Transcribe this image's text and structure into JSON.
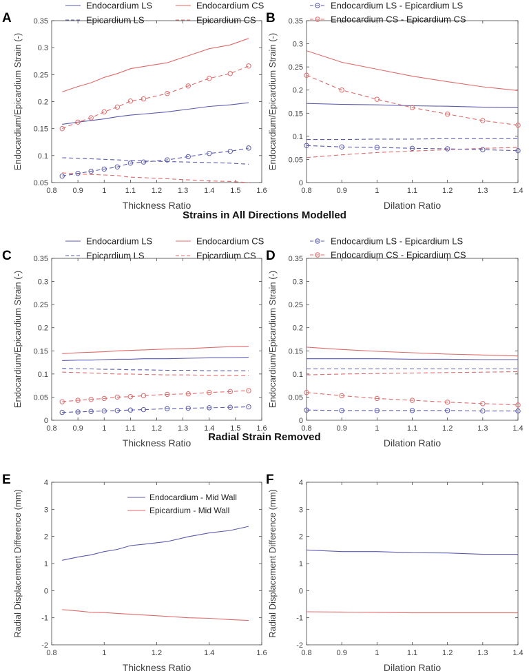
{
  "section_titles": {
    "middle": "Strains in All Directions Modelled",
    "bottom": "Radial Strain Removed"
  },
  "colors": {
    "blue": "#5a5aae",
    "red": "#e06a6a",
    "axis": "#444444",
    "text": "#404040"
  },
  "chart_data": [
    {
      "panel": "A",
      "type": "line",
      "title": "",
      "xlabel": "Thickness Ratio",
      "ylabel": "Endocardium/Epicardium Strain (-)",
      "xlim": [
        0.8,
        1.6
      ],
      "ylim": [
        0.05,
        0.35
      ],
      "xticks": [
        0.8,
        0.9,
        1,
        1.1,
        1.2,
        1.3,
        1.4,
        1.5,
        1.6
      ],
      "xtick_labels": [
        "0.8",
        "0.9",
        "1",
        "1.1",
        "1.2",
        "1.3",
        "1.4",
        "1.5",
        "1.6"
      ],
      "yticks": [
        0.05,
        0.1,
        0.15,
        0.2,
        0.25,
        0.3,
        0.35
      ],
      "ytick_labels": [
        "0.05",
        "0.1",
        "0.15",
        "0.2",
        "0.25",
        "0.3",
        "0.35"
      ],
      "x": [
        0.84,
        0.9,
        0.95,
        1.0,
        1.05,
        1.1,
        1.15,
        1.24,
        1.32,
        1.4,
        1.48,
        1.55
      ],
      "series": [
        {
          "name": "Endocardium LS",
          "color": "blue",
          "dash": false,
          "marker": false,
          "values": [
            0.158,
            0.162,
            0.165,
            0.168,
            0.172,
            0.175,
            0.177,
            0.181,
            0.186,
            0.191,
            0.194,
            0.198
          ]
        },
        {
          "name": "Endocardium CS",
          "color": "red",
          "dash": false,
          "marker": false,
          "values": [
            0.218,
            0.228,
            0.235,
            0.245,
            0.252,
            0.261,
            0.265,
            0.272,
            0.285,
            0.298,
            0.305,
            0.317
          ]
        },
        {
          "name": "Epicardium LS",
          "color": "blue",
          "dash": true,
          "marker": false,
          "values": [
            0.096,
            0.095,
            0.094,
            0.093,
            0.092,
            0.091,
            0.09,
            0.089,
            0.088,
            0.087,
            0.086,
            0.084
          ]
        },
        {
          "name": "Epicardium CS",
          "color": "red",
          "dash": true,
          "marker": false,
          "values": [
            0.068,
            0.066,
            0.065,
            0.064,
            0.063,
            0.06,
            0.059,
            0.057,
            0.055,
            0.053,
            0.052,
            0.05
          ]
        },
        {
          "name": "Endocardium CS - Epicardium CS",
          "color": "red",
          "dash": true,
          "marker": true,
          "legend": false,
          "values": [
            0.15,
            0.162,
            0.17,
            0.181,
            0.19,
            0.201,
            0.205,
            0.215,
            0.229,
            0.243,
            0.252,
            0.266
          ]
        },
        {
          "name": "Endocardium LS - Epicardium LS",
          "color": "blue",
          "dash": true,
          "marker": true,
          "legend": false,
          "values": [
            0.062,
            0.067,
            0.071,
            0.075,
            0.079,
            0.086,
            0.088,
            0.092,
            0.098,
            0.104,
            0.108,
            0.114
          ]
        }
      ]
    },
    {
      "panel": "B",
      "type": "line",
      "title": "",
      "xlabel": "Dilation Ratio",
      "ylabel": "Endocardium/Epicardium Strain (-)",
      "xlim": [
        0.8,
        1.4
      ],
      "ylim": [
        0,
        0.35
      ],
      "xticks": [
        0.8,
        0.9,
        1,
        1.1,
        1.2,
        1.3,
        1.4
      ],
      "xtick_labels": [
        "0.8",
        "0.9",
        "1",
        "1.1",
        "1.2",
        "1.3",
        "1.4"
      ],
      "yticks": [
        0,
        0.05,
        0.1,
        0.15,
        0.2,
        0.25,
        0.3,
        0.35
      ],
      "ytick_labels": [
        "0",
        "0.05",
        "0.1",
        "0.15",
        "0.2",
        "0.25",
        "0.3",
        "0.35"
      ],
      "x": [
        0.8,
        0.9,
        1.0,
        1.1,
        1.2,
        1.3,
        1.4
      ],
      "series": [
        {
          "name": "Endocardium LS",
          "color": "blue",
          "dash": false,
          "marker": false,
          "legend": false,
          "values": [
            0.171,
            0.169,
            0.168,
            0.166,
            0.165,
            0.163,
            0.162
          ]
        },
        {
          "name": "Endocardium CS",
          "color": "red",
          "dash": false,
          "marker": false,
          "legend": false,
          "values": [
            0.285,
            0.26,
            0.245,
            0.23,
            0.218,
            0.207,
            0.199
          ]
        },
        {
          "name": "Epicardium LS",
          "color": "blue",
          "dash": true,
          "marker": false,
          "legend": false,
          "values": [
            0.093,
            0.093,
            0.094,
            0.094,
            0.095,
            0.095,
            0.095
          ]
        },
        {
          "name": "Epicardium CS",
          "color": "red",
          "dash": true,
          "marker": false,
          "legend": false,
          "values": [
            0.054,
            0.06,
            0.065,
            0.068,
            0.071,
            0.074,
            0.076
          ]
        },
        {
          "name": "Endocardium LS - Epicardium LS",
          "color": "blue",
          "dash": true,
          "marker": true,
          "values": [
            0.08,
            0.077,
            0.076,
            0.074,
            0.073,
            0.071,
            0.069
          ]
        },
        {
          "name": "Endocardium CS - Epicardium CS",
          "color": "red",
          "dash": true,
          "marker": true,
          "values": [
            0.232,
            0.2,
            0.18,
            0.162,
            0.148,
            0.134,
            0.124
          ]
        }
      ]
    },
    {
      "panel": "C",
      "type": "line",
      "title": "",
      "xlabel": "Thickness Ratio",
      "ylabel": "Endocardium/Epicardium Strain (-)",
      "xlim": [
        0.8,
        1.6
      ],
      "ylim": [
        0,
        0.35
      ],
      "xticks": [
        0.8,
        0.9,
        1,
        1.1,
        1.2,
        1.3,
        1.4,
        1.5,
        1.6
      ],
      "xtick_labels": [
        "0.8",
        "0.9",
        "1",
        "1.1",
        "1.2",
        "1.3",
        "1.4",
        "1.5",
        "1.6"
      ],
      "yticks": [
        0,
        0.05,
        0.1,
        0.15,
        0.2,
        0.25,
        0.3,
        0.35
      ],
      "ytick_labels": [
        "0",
        "0.05",
        "0.1",
        "0.15",
        "0.2",
        "0.25",
        "0.3",
        "0.35"
      ],
      "x": [
        0.84,
        0.9,
        0.95,
        1.0,
        1.05,
        1.1,
        1.15,
        1.24,
        1.32,
        1.4,
        1.48,
        1.55
      ],
      "series": [
        {
          "name": "Endocardium LS",
          "color": "blue",
          "dash": false,
          "marker": false,
          "values": [
            0.129,
            0.13,
            0.13,
            0.131,
            0.132,
            0.132,
            0.133,
            0.133,
            0.134,
            0.135,
            0.135,
            0.136
          ]
        },
        {
          "name": "Endocardium CS",
          "color": "red",
          "dash": false,
          "marker": false,
          "values": [
            0.144,
            0.146,
            0.147,
            0.148,
            0.15,
            0.151,
            0.152,
            0.154,
            0.155,
            0.157,
            0.159,
            0.16
          ]
        },
        {
          "name": "Epicardium LS",
          "color": "blue",
          "dash": true,
          "marker": false,
          "values": [
            0.112,
            0.111,
            0.111,
            0.11,
            0.11,
            0.109,
            0.109,
            0.108,
            0.108,
            0.107,
            0.107,
            0.107
          ]
        },
        {
          "name": "Epicardium CS",
          "color": "red",
          "dash": true,
          "marker": false,
          "values": [
            0.104,
            0.103,
            0.102,
            0.101,
            0.1,
            0.1,
            0.099,
            0.098,
            0.098,
            0.097,
            0.097,
            0.096
          ]
        },
        {
          "name": "Endocardium CS - Epicardium CS",
          "color": "red",
          "dash": true,
          "marker": true,
          "legend": false,
          "values": [
            0.04,
            0.043,
            0.045,
            0.047,
            0.05,
            0.051,
            0.053,
            0.056,
            0.057,
            0.06,
            0.062,
            0.064
          ]
        },
        {
          "name": "Endocardium LS - Epicardium LS",
          "color": "blue",
          "dash": true,
          "marker": true,
          "legend": false,
          "values": [
            0.017,
            0.018,
            0.019,
            0.02,
            0.021,
            0.022,
            0.023,
            0.025,
            0.026,
            0.027,
            0.028,
            0.029
          ]
        }
      ]
    },
    {
      "panel": "D",
      "type": "line",
      "title": "",
      "xlabel": "Dilation Ratio",
      "ylabel": "Endocardium/Epicardium Strain (-)",
      "xlim": [
        0.8,
        1.4
      ],
      "ylim": [
        0,
        0.35
      ],
      "xticks": [
        0.8,
        0.9,
        1,
        1.1,
        1.2,
        1.3,
        1.4
      ],
      "xtick_labels": [
        "0.8",
        "0.9",
        "1",
        "1.1",
        "1.2",
        "1.3",
        "1.4"
      ],
      "yticks": [
        0,
        0.05,
        0.1,
        0.15,
        0.2,
        0.25,
        0.3,
        0.35
      ],
      "ytick_labels": [
        "0",
        "0.05",
        "0.1",
        "0.15",
        "0.2",
        "0.25",
        "0.3",
        "0.35"
      ],
      "x": [
        0.8,
        0.9,
        1.0,
        1.1,
        1.2,
        1.3,
        1.4
      ],
      "series": [
        {
          "name": "Endocardium LS",
          "color": "blue",
          "dash": false,
          "marker": false,
          "legend": false,
          "values": [
            0.133,
            0.133,
            0.133,
            0.132,
            0.132,
            0.131,
            0.131
          ]
        },
        {
          "name": "Endocardium CS",
          "color": "red",
          "dash": false,
          "marker": false,
          "legend": false,
          "values": [
            0.158,
            0.153,
            0.149,
            0.146,
            0.143,
            0.141,
            0.139
          ]
        },
        {
          "name": "Epicardium LS",
          "color": "blue",
          "dash": true,
          "marker": false,
          "legend": false,
          "values": [
            0.111,
            0.111,
            0.111,
            0.111,
            0.111,
            0.111,
            0.111
          ]
        },
        {
          "name": "Epicardium CS",
          "color": "red",
          "dash": true,
          "marker": false,
          "legend": false,
          "values": [
            0.098,
            0.1,
            0.101,
            0.102,
            0.103,
            0.104,
            0.105
          ]
        },
        {
          "name": "Endocardium LS - Epicardium LS",
          "color": "blue",
          "dash": true,
          "marker": true,
          "values": [
            0.022,
            0.021,
            0.021,
            0.021,
            0.021,
            0.02,
            0.02
          ]
        },
        {
          "name": "Endocardium CS - Epicardium CS",
          "color": "red",
          "dash": true,
          "marker": true,
          "values": [
            0.06,
            0.053,
            0.047,
            0.043,
            0.039,
            0.036,
            0.033
          ]
        }
      ]
    },
    {
      "panel": "E",
      "type": "line",
      "title": "",
      "xlabel": "Thickness Ratio",
      "ylabel": "Radial Displacement Difference (mm)",
      "xlim": [
        0.8,
        1.6
      ],
      "ylim": [
        -2,
        4
      ],
      "xticks": [
        0.8,
        1,
        1.2,
        1.4,
        1.6
      ],
      "xtick_labels": [
        "0.8",
        "1",
        "1.2",
        "1.4",
        "1.6"
      ],
      "yticks": [
        -2,
        -1,
        0,
        1,
        2,
        3,
        4
      ],
      "ytick_labels": [
        "-2",
        "-1",
        "0",
        "1",
        "2",
        "3",
        "4"
      ],
      "x": [
        0.84,
        0.9,
        0.95,
        1.0,
        1.05,
        1.1,
        1.15,
        1.24,
        1.32,
        1.4,
        1.48,
        1.55
      ],
      "series": [
        {
          "name": "Endocardium - Mid Wall",
          "color": "blue",
          "dash": false,
          "marker": false,
          "values": [
            1.12,
            1.24,
            1.32,
            1.44,
            1.52,
            1.66,
            1.71,
            1.81,
            1.99,
            2.13,
            2.22,
            2.37
          ]
        },
        {
          "name": "Epicardium - Mid Wall",
          "color": "red",
          "dash": false,
          "marker": false,
          "values": [
            -0.7,
            -0.75,
            -0.8,
            -0.81,
            -0.84,
            -0.87,
            -0.9,
            -0.95,
            -1.0,
            -1.02,
            -1.07,
            -1.1
          ]
        }
      ]
    },
    {
      "panel": "F",
      "type": "line",
      "title": "",
      "xlabel": "Dilation Ratio",
      "ylabel": "Radial Displacement Difference (mm)",
      "xlim": [
        0.8,
        1.4
      ],
      "ylim": [
        -2,
        4
      ],
      "xticks": [
        0.8,
        0.9,
        1,
        1.1,
        1.2,
        1.3,
        1.4
      ],
      "xtick_labels": [
        "0.8",
        "0.9",
        "1",
        "1.1",
        "1.2",
        "1.3",
        "1.4"
      ],
      "yticks": [
        -2,
        -1,
        0,
        1,
        2,
        3,
        4
      ],
      "ytick_labels": [
        "-2",
        "-1",
        "0",
        "1",
        "2",
        "3",
        "4"
      ],
      "x": [
        0.8,
        0.9,
        1.0,
        1.1,
        1.2,
        1.3,
        1.4
      ],
      "series": [
        {
          "name": "Endocardium - Mid Wall",
          "color": "blue",
          "dash": false,
          "marker": false,
          "legend": false,
          "values": [
            1.5,
            1.44,
            1.44,
            1.4,
            1.39,
            1.34,
            1.34
          ]
        },
        {
          "name": "Epicardium - Mid Wall",
          "color": "red",
          "dash": false,
          "marker": false,
          "legend": false,
          "values": [
            -0.78,
            -0.79,
            -0.8,
            -0.82,
            -0.82,
            -0.82,
            -0.82
          ]
        }
      ]
    }
  ]
}
